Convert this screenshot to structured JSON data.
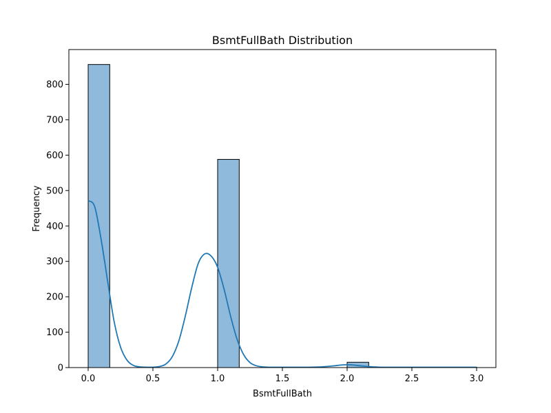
{
  "chart_data": {
    "type": "bar",
    "subtype": "histogram-with-kde",
    "title": "BsmtFullBath Distribution",
    "xlabel": "BsmtFullBath",
    "ylabel": "Frequency",
    "xlim": [
      -0.15,
      3.15
    ],
    "ylim": [
      0,
      900
    ],
    "x_ticks": [
      0.0,
      0.5,
      1.0,
      1.5,
      2.0,
      2.5,
      3.0
    ],
    "x_tick_labels": [
      "0.0",
      "0.5",
      "1.0",
      "1.5",
      "2.0",
      "2.5",
      "3.0"
    ],
    "y_ticks": [
      0,
      100,
      200,
      300,
      400,
      500,
      600,
      700,
      800
    ],
    "y_tick_labels": [
      "0",
      "100",
      "200",
      "300",
      "400",
      "500",
      "600",
      "700",
      "800"
    ],
    "bins": [
      {
        "x0": 0.0,
        "x1": 0.1667,
        "value": 856
      },
      {
        "x0": 0.1667,
        "x1": 0.3333,
        "value": 0
      },
      {
        "x0": 0.3333,
        "x1": 0.5,
        "value": 0
      },
      {
        "x0": 0.5,
        "x1": 0.6667,
        "value": 0
      },
      {
        "x0": 0.6667,
        "x1": 0.8333,
        "value": 0
      },
      {
        "x0": 0.8333,
        "x1": 1.0,
        "value": 0
      },
      {
        "x0": 1.0,
        "x1": 1.1667,
        "value": 588
      },
      {
        "x0": 1.1667,
        "x1": 1.3333,
        "value": 0
      },
      {
        "x0": 1.3333,
        "x1": 1.5,
        "value": 0
      },
      {
        "x0": 1.5,
        "x1": 1.6667,
        "value": 0
      },
      {
        "x0": 1.6667,
        "x1": 1.8333,
        "value": 0
      },
      {
        "x0": 1.8333,
        "x1": 2.0,
        "value": 0
      },
      {
        "x0": 2.0,
        "x1": 2.1667,
        "value": 15
      },
      {
        "x0": 2.1667,
        "x1": 2.3333,
        "value": 0
      },
      {
        "x0": 2.3333,
        "x1": 2.5,
        "value": 0
      },
      {
        "x0": 2.5,
        "x1": 2.6667,
        "value": 0
      },
      {
        "x0": 2.6667,
        "x1": 2.8333,
        "value": 0
      },
      {
        "x0": 2.8333,
        "x1": 3.0,
        "value": 1
      }
    ],
    "kde": {
      "x": [
        0.0,
        0.05,
        0.1,
        0.15,
        0.2,
        0.25,
        0.3,
        0.35,
        0.4,
        0.45,
        0.5,
        0.55,
        0.6,
        0.65,
        0.7,
        0.75,
        0.8,
        0.85,
        0.9,
        0.95,
        1.0,
        1.05,
        1.1,
        1.15,
        1.2,
        1.25,
        1.3,
        1.35,
        1.4,
        1.45,
        1.5,
        1.6,
        1.7,
        1.8,
        1.9,
        1.95,
        2.0,
        2.05,
        2.1,
        2.2,
        2.3,
        2.5,
        2.7,
        2.9,
        3.0
      ],
      "y": [
        471,
        455,
        362,
        245,
        131,
        58,
        21,
        6,
        2,
        1,
        1,
        3,
        10,
        31,
        75,
        145,
        226,
        294,
        321,
        315,
        283,
        221,
        145,
        80,
        37,
        14,
        5,
        2,
        1,
        1,
        1,
        1,
        1,
        2,
        5,
        7,
        8,
        7,
        5,
        2,
        1,
        1,
        1,
        1,
        1
      ]
    },
    "grid": false,
    "legend": "none",
    "bar_fill": "#8fbadb",
    "bar_edge": "#000000",
    "kde_color": "#1f77b4",
    "axis_color": "#000000"
  }
}
